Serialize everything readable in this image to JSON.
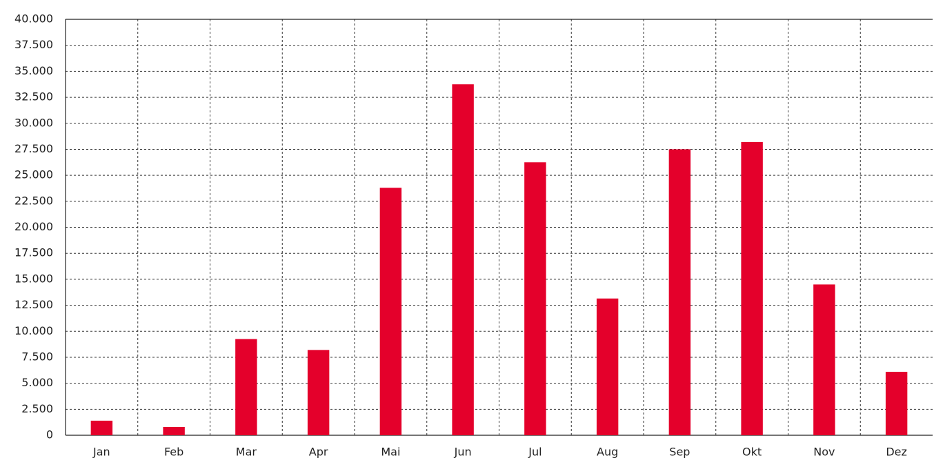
{
  "chart_data": {
    "type": "bar",
    "categories": [
      "Jan",
      "Feb",
      "Mar",
      "Apr",
      "Mai",
      "Jun",
      "Jul",
      "Aug",
      "Sep",
      "Okt",
      "Nov",
      "Dez"
    ],
    "values": [
      1400,
      800,
      9250,
      8200,
      23800,
      33750,
      26250,
      13150,
      27500,
      28200,
      14500,
      6100
    ],
    "color": "#e4002b",
    "ylim": [
      0,
      40000
    ],
    "yticks": [
      0,
      {
        "value": 2500,
        "label": "2.500"
      },
      {
        "value": 5000,
        "label": "5.000"
      },
      {
        "value": 7500,
        "label": "7.500"
      },
      {
        "value": 10000,
        "label": "10.000"
      },
      {
        "value": 12500,
        "label": "12.500"
      },
      {
        "value": 15000,
        "label": "15.000"
      },
      {
        "value": 17500,
        "label": "17.500"
      },
      {
        "value": 20000,
        "label": "20.000"
      },
      {
        "value": 22500,
        "label": "22.500"
      },
      {
        "value": 25000,
        "label": "25.000"
      },
      {
        "value": 27500,
        "label": "27.500"
      },
      {
        "value": 30000,
        "label": "30.000"
      },
      {
        "value": 32500,
        "label": "32.500"
      },
      {
        "value": 35000,
        "label": "35.000"
      },
      {
        "value": 37500,
        "label": "37.500"
      },
      {
        "value": 40000,
        "label": "40.000"
      }
    ],
    "grid": true
  }
}
